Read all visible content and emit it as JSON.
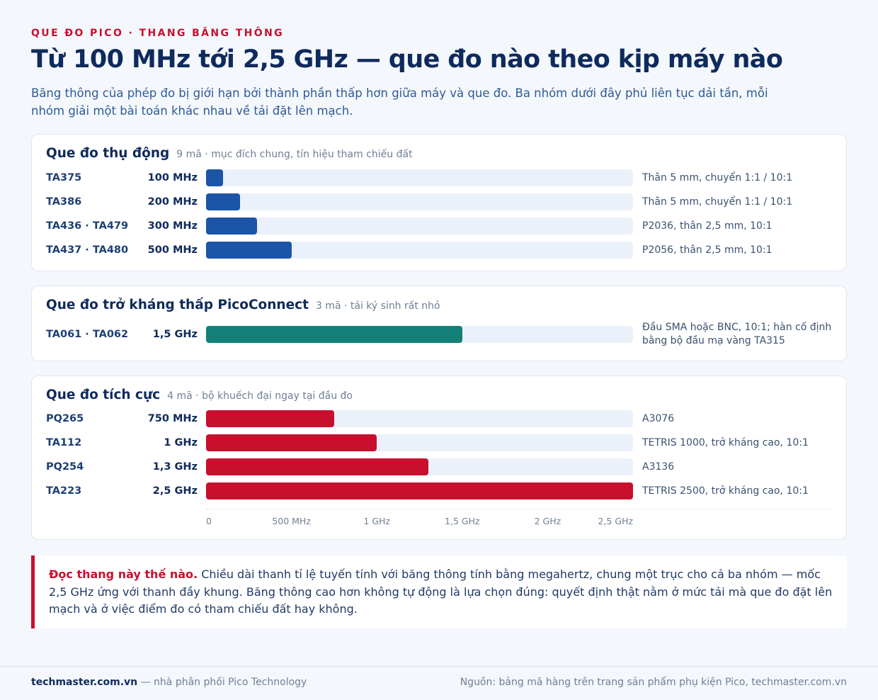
{
  "header": {
    "kicker": "QUE ĐO PICO · THANG BĂNG THÔNG",
    "title": "Từ 100 MHz tới 2,5 GHz — que đo nào theo kịp máy nào",
    "lede": "Băng thông của phép đo bị giới hạn bởi thành phần thấp hơn giữa máy và que đo. Ba nhóm dưới đây phủ liên tục dải tần, mỗi nhóm giải một bài toán khác nhau về tải đặt lên mạch."
  },
  "colors": {
    "passive": "#1c54a8",
    "connect": "#13807a",
    "active": "#c8102e",
    "track": "#ebf1fa"
  },
  "chart_data": {
    "type": "bar",
    "orientation": "horizontal",
    "unit": "MHz",
    "xlim": [
      0,
      2500
    ],
    "ticks": [
      {
        "value": 0,
        "label": "0"
      },
      {
        "value": 500,
        "label": "500 MHz"
      },
      {
        "value": 1000,
        "label": "1 GHz"
      },
      {
        "value": 1500,
        "label": "1,5 GHz"
      },
      {
        "value": 2000,
        "label": "2 GHz"
      },
      {
        "value": 2500,
        "label": "2,5 GHz"
      }
    ],
    "groups": [
      {
        "key": "passive",
        "title": "Que đo thụ động",
        "subtitle": "9 mã · mục đích chung, tín hiệu tham chiếu đất",
        "color": "#1c54a8",
        "rows": [
          {
            "code": "TA375",
            "value": 100,
            "label": "100 MHz",
            "note": "Thân 5 mm, chuyển 1:1 / 10:1"
          },
          {
            "code": "TA386",
            "value": 200,
            "label": "200 MHz",
            "note": "Thân 5 mm, chuyển 1:1 / 10:1"
          },
          {
            "code": "TA436 · TA479",
            "value": 300,
            "label": "300 MHz",
            "note": "P2036, thân 2,5 mm, 10:1"
          },
          {
            "code": "TA437 · TA480",
            "value": 500,
            "label": "500 MHz",
            "note": "P2056, thân 2,5 mm, 10:1"
          }
        ]
      },
      {
        "key": "connect",
        "title": "Que đo trở kháng thấp PicoConnect",
        "subtitle": "3 mã · tải ký sinh rất nhỏ",
        "color": "#13807a",
        "rows": [
          {
            "code": "TA061 · TA062",
            "value": 1500,
            "label": "1,5 GHz",
            "note": "Đầu SMA hoặc BNC, 10:1; hàn cố định bằng bộ đầu mạ vàng TA315"
          }
        ]
      },
      {
        "key": "active",
        "title": "Que đo tích cực",
        "subtitle": "4 mã · bộ khuếch đại ngay tại đầu đo",
        "color": "#c8102e",
        "rows": [
          {
            "code": "PQ265",
            "value": 750,
            "label": "750 MHz",
            "note": "A3076"
          },
          {
            "code": "TA112",
            "value": 1000,
            "label": "1 GHz",
            "note": "TETRIS 1000, trở kháng cao, 10:1"
          },
          {
            "code": "PQ254",
            "value": 1300,
            "label": "1,3 GHz",
            "note": "A3136"
          },
          {
            "code": "TA223",
            "value": 2500,
            "label": "2,5 GHz",
            "note": "TETRIS 2500, trở kháng cao, 10:1"
          }
        ]
      }
    ]
  },
  "callout": {
    "lead": "Đọc thang này thế nào.",
    "text": " Chiều dài thanh tỉ lệ tuyến tính với băng thông tính bằng megahertz, chung một trục cho cả ba nhóm — mốc 2,5 GHz ứng với thanh đầy khung. Băng thông cao hơn không tự động là lựa chọn đúng: quyết định thật nằm ở mức tải mà que đo đặt lên mạch và ở việc điểm đo có tham chiếu đất hay không."
  },
  "footer": {
    "brand": "techmaster.com.vn",
    "tagline": " — nhà phân phối Pico Technology",
    "source": "Nguồn: bảng mã hàng trên trang sản phẩm phụ kiện Pico, techmaster.com.vn"
  }
}
